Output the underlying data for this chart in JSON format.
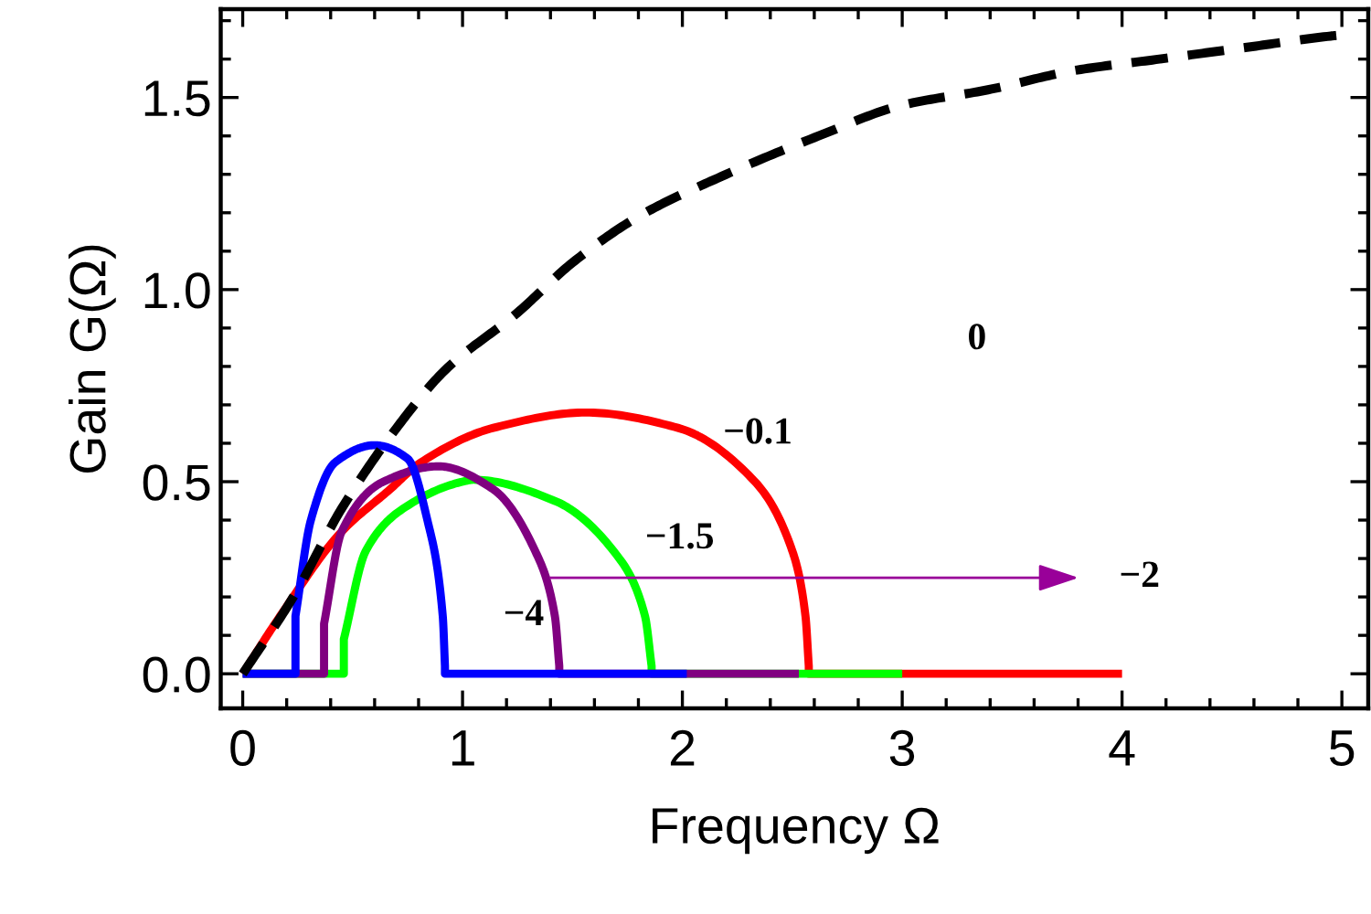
{
  "chart_data": {
    "type": "line",
    "xlabel": "Frequency Ω",
    "ylabel": "Gain G(Ω)",
    "xlim": [
      -0.1,
      5.12
    ],
    "ylim": [
      -0.09,
      1.73
    ],
    "xticks": [
      0,
      1,
      2,
      3,
      4,
      5
    ],
    "yticks": [
      {
        "value": 0,
        "label": "0.0"
      },
      {
        "value": 0.5,
        "label": "0.5"
      },
      {
        "value": 1,
        "label": "1.0"
      },
      {
        "value": 1.5,
        "label": "1.5"
      }
    ],
    "grid": false,
    "legend": false,
    "marker": "none",
    "series": [
      {
        "color": "#ff0000",
        "line_style": "solid",
        "x": [
          0,
          0.17,
          0.45,
          0.67,
          0.81,
          1.14,
          1.56,
          1.98,
          2.33,
          2.5,
          2.56,
          2.575,
          2.575,
          4.0
        ],
        "values": [
          0,
          0.15,
          0.37,
          0.48,
          0.55,
          0.64,
          0.68,
          0.64,
          0.5,
          0.32,
          0.15,
          0.02,
          0,
          0
        ]
      },
      {
        "color": "#00ff00",
        "line_style": "solid",
        "x": [
          0,
          0.46,
          0.46,
          0.56,
          0.73,
          1.0,
          1.05,
          1.42,
          1.7,
          1.83,
          1.86,
          1.86,
          3.0
        ],
        "values": [
          0,
          0,
          0.09,
          0.32,
          0.43,
          0.5,
          0.505,
          0.45,
          0.31,
          0.15,
          0.02,
          0,
          0
        ]
      },
      {
        "color": "#800080",
        "line_style": "solid",
        "x": [
          0,
          0.37,
          0.37,
          0.45,
          0.64,
          0.89,
          1.14,
          1.33,
          1.42,
          1.44,
          1.44,
          2.53
        ],
        "values": [
          0,
          0,
          0.13,
          0.37,
          0.5,
          0.54,
          0.48,
          0.32,
          0.15,
          0.02,
          0,
          0
        ]
      },
      {
        "color": "#0000ff",
        "line_style": "solid",
        "x": [
          0,
          0.24,
          0.24,
          0.31,
          0.42,
          0.6,
          0.75,
          0.84,
          0.91,
          0.92,
          0.92,
          2.02
        ],
        "values": [
          0,
          0,
          0.15,
          0.4,
          0.55,
          0.595,
          0.56,
          0.4,
          0.15,
          0.02,
          0,
          0
        ]
      },
      {
        "color": "#000000",
        "line_style": "dashed",
        "x": [
          0,
          0.23,
          0.45,
          0.7,
          0.92,
          1.25,
          1.5,
          1.8,
          2.16,
          2.62,
          3.0,
          3.39,
          3.78,
          4.17,
          4.56,
          4.95,
          5.04
        ],
        "values": [
          0,
          0.2,
          0.43,
          0.64,
          0.79,
          0.94,
          1.07,
          1.19,
          1.29,
          1.4,
          1.48,
          1.52,
          1.57,
          1.6,
          1.63,
          1.66,
          1.665
        ]
      }
    ],
    "annotations": [
      "0",
      "−0.1",
      "−1.5",
      "−4",
      {
        "text": "−2",
        "x": 1.4,
        "y": 0.25
      }
    ]
  }
}
